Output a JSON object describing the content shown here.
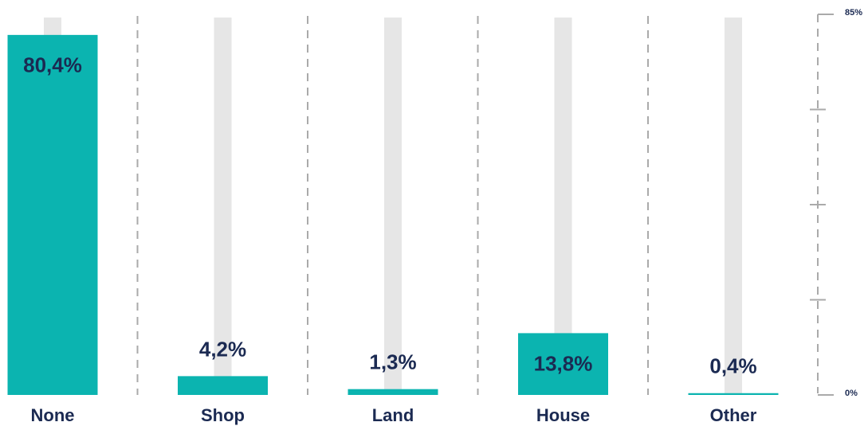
{
  "chart_data": {
    "type": "bar",
    "categories": [
      "None",
      "Shop",
      "Land",
      "House",
      "Other"
    ],
    "values": [
      80.4,
      4.2,
      1.3,
      13.8,
      0.4
    ],
    "value_labels": [
      "80,4%",
      "4,2%",
      "1,3%",
      "13,8%",
      "0,4%"
    ],
    "color": "#0bb4b0",
    "ylim": [
      0,
      85
    ],
    "yticks": [
      {
        "value": 0,
        "label": "0%"
      },
      {
        "value": 21.25,
        "label": null
      },
      {
        "value": 42.5,
        "label": null
      },
      {
        "value": 63.75,
        "label": null
      },
      {
        "value": 85,
        "label": "85%"
      }
    ]
  }
}
